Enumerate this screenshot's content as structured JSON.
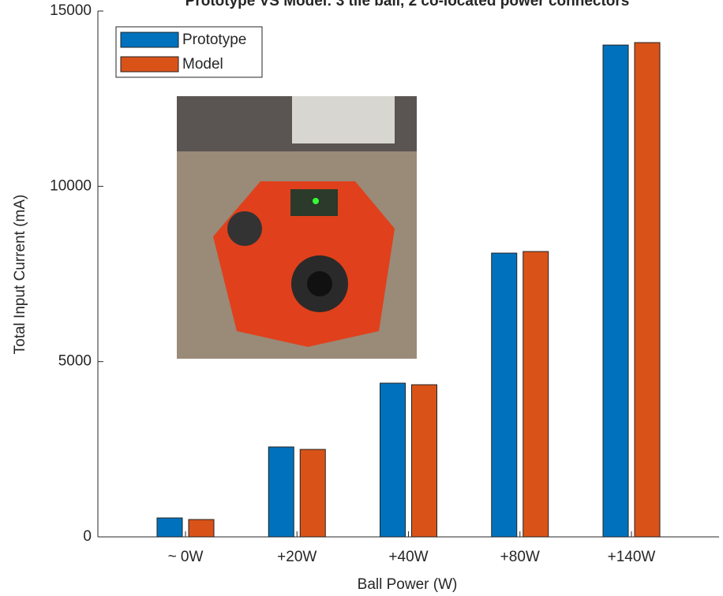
{
  "chart_data": {
    "type": "bar",
    "title": "Prototype VS Model: 3 tile ball, 2 co-located power connectors",
    "x_label": "Ball Power (W)",
    "y_label": "Total Input Current (mA)",
    "categories": [
      "~ 0W",
      "+20W",
      "+40W",
      "+80W",
      "+140W"
    ],
    "series": [
      {
        "name": "Prototype",
        "color": "#0072bd",
        "values": [
          540,
          2565,
          4385,
          8095,
          14030
        ]
      },
      {
        "name": "Model",
        "color": "#d95319",
        "values": [
          495,
          2495,
          4340,
          8140,
          14100
        ]
      }
    ],
    "ylim": [
      0,
      15000
    ],
    "yticks": [
      0,
      5000,
      10000,
      15000
    ],
    "legend": "upper left",
    "grid": false
  }
}
